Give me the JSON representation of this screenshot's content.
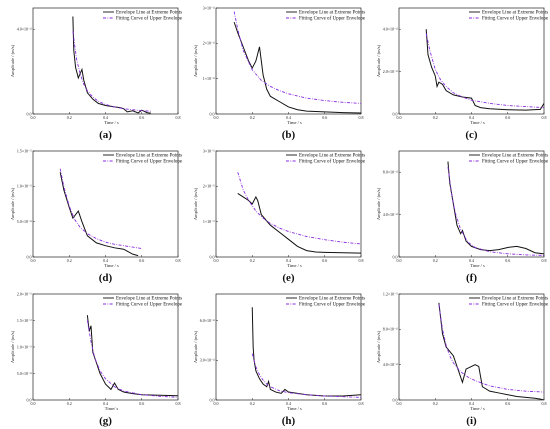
{
  "figure": {
    "legend_labels": [
      "Envelope Line at Extreme Points",
      "Fitting Curve of Upper Envelope"
    ],
    "colors": {
      "envelope": "#111111",
      "fit": "#8a2be2",
      "axis": "#222222"
    }
  },
  "chart_data": [
    {
      "type": "line",
      "caption": "(a)",
      "xlabel": "Time / s",
      "ylabel": "Amplitude / (m/s)",
      "xlim": [
        0,
        0.8
      ],
      "xticks": [
        "0.0",
        "0.2",
        "0.4",
        "0.6",
        "0.8"
      ],
      "ylim": [
        0,
        0.0005
      ],
      "yticks": [
        {
          "v": 0,
          "label": "0.0"
        },
        {
          "v": 0.0004,
          "label": "4.0×10⁻⁴"
        }
      ],
      "legend": "top-right",
      "series": [
        {
          "name": "Envelope Line at Extreme Points",
          "style": "solid",
          "x": [
            0.22,
            0.225,
            0.235,
            0.25,
            0.26,
            0.27,
            0.28,
            0.3,
            0.33,
            0.36,
            0.4,
            0.44,
            0.48,
            0.5,
            0.52,
            0.55,
            0.58,
            0.6,
            0.63,
            0.65
          ],
          "y": [
            0.00046,
            0.0003,
            0.00022,
            0.00017,
            0.00019,
            0.00021,
            0.00016,
            0.0001,
            7e-05,
            5e-05,
            4e-05,
            3.5e-05,
            3e-05,
            2.5e-05,
            1e-05,
            1.5e-05,
            5e-06,
            1.8e-05,
            6e-06,
            4e-06
          ]
        },
        {
          "name": "Fitting Curve of Upper Envelope",
          "style": "dashdot",
          "x": [
            0.22,
            0.24,
            0.26,
            0.28,
            0.3,
            0.33,
            0.36,
            0.4,
            0.45,
            0.5,
            0.55,
            0.6,
            0.65
          ],
          "y": [
            0.00039,
            0.00026,
            0.00019,
            0.00014,
            0.00011,
            8e-05,
            6e-05,
            4.5e-05,
            3.3e-05,
            2.5e-05,
            2e-05,
            1.6e-05,
            1.3e-05
          ]
        }
      ]
    },
    {
      "type": "line",
      "caption": "(b)",
      "xlabel": "Time / s",
      "ylabel": "Amplitude / (m/s)",
      "xlim": [
        0,
        0.8
      ],
      "xticks": [
        "0.0",
        "0.2",
        "0.4",
        "0.6",
        "0.8"
      ],
      "ylim": [
        0,
        0.0003
      ],
      "yticks": [
        {
          "v": 0,
          "label": "0.0"
        },
        {
          "v": 0.0001,
          "label": "1×10⁻⁴"
        },
        {
          "v": 0.0002,
          "label": "2×10⁻⁴"
        },
        {
          "v": 0.0003,
          "label": "3×10⁻⁴"
        }
      ],
      "legend": "top-right",
      "series": [
        {
          "name": "Envelope Line at Extreme Points",
          "style": "solid",
          "x": [
            0.1,
            0.12,
            0.15,
            0.18,
            0.2,
            0.22,
            0.24,
            0.26,
            0.28,
            0.3,
            0.35,
            0.4,
            0.45,
            0.5,
            0.6,
            0.7,
            0.8
          ],
          "y": [
            0.00026,
            0.00023,
            0.00019,
            0.00015,
            0.00013,
            0.00015,
            0.00019,
            0.00011,
            7e-05,
            5e-05,
            3.5e-05,
            2e-05,
            1.2e-05,
            8e-06,
            6e-06,
            4e-06,
            3e-06
          ]
        },
        {
          "name": "Fitting Curve of Upper Envelope",
          "style": "dashdot",
          "x": [
            0.1,
            0.12,
            0.15,
            0.2,
            0.25,
            0.3,
            0.35,
            0.4,
            0.5,
            0.6,
            0.7,
            0.8
          ],
          "y": [
            0.00029,
            0.00024,
            0.00018,
            0.000125,
            9.5e-05,
            7.8e-05,
            6.6e-05,
            5.7e-05,
            4.5e-05,
            3.8e-05,
            3.3e-05,
            3e-05
          ]
        }
      ]
    },
    {
      "type": "line",
      "caption": "(c)",
      "xlabel": "Time / s",
      "ylabel": "Amplitude / (m/s)",
      "xlim": [
        0,
        0.8
      ],
      "xticks": [
        "0.0",
        "0.2",
        "0.4",
        "0.6",
        "0.8"
      ],
      "ylim": [
        0,
        0.0005
      ],
      "yticks": [
        {
          "v": 0,
          "label": "0.0"
        },
        {
          "v": 0.0002,
          "label": "2.0×10⁻⁴"
        },
        {
          "v": 0.0004,
          "label": "4.0×10⁻⁴"
        }
      ],
      "legend": "top-right",
      "series": [
        {
          "name": "Envelope Line at Extreme Points",
          "style": "solid",
          "x": [
            0.15,
            0.16,
            0.18,
            0.2,
            0.21,
            0.22,
            0.24,
            0.26,
            0.3,
            0.35,
            0.4,
            0.42,
            0.45,
            0.5,
            0.6,
            0.7,
            0.78,
            0.8
          ],
          "y": [
            0.0004,
            0.00028,
            0.00022,
            0.00018,
            0.00013,
            0.00015,
            0.00014,
            0.00011,
            9e-05,
            8e-05,
            7.5e-05,
            4e-05,
            3e-05,
            2.5e-05,
            2e-05,
            1.8e-05,
            2.2e-05,
            5e-05
          ]
        },
        {
          "name": "Fitting Curve of Upper Envelope",
          "style": "dashdot",
          "x": [
            0.15,
            0.17,
            0.2,
            0.23,
            0.26,
            0.3,
            0.35,
            0.4,
            0.5,
            0.6,
            0.7,
            0.8
          ],
          "y": [
            0.00038,
            0.0003,
            0.00021,
            0.00016,
            0.00013,
            0.0001,
            8e-05,
            6.5e-05,
            5e-05,
            4e-05,
            3.5e-05,
            3e-05
          ]
        }
      ]
    },
    {
      "type": "line",
      "caption": "(d)",
      "xlabel": "Time / s",
      "ylabel": "Amplitude / (m/s)",
      "xlim": [
        0,
        0.8
      ],
      "xticks": [
        "0.0",
        "0.2",
        "0.4",
        "0.6",
        "0.8"
      ],
      "ylim": [
        0,
        0.0015
      ],
      "yticks": [
        {
          "v": 0,
          "label": "0.0"
        },
        {
          "v": 0.0005,
          "label": "5.0×10⁻⁴"
        },
        {
          "v": 0.001,
          "label": "1.0×10⁻³"
        },
        {
          "v": 0.0015,
          "label": "1.5×10⁻³"
        }
      ],
      "legend": "top-right",
      "series": [
        {
          "name": "Envelope Line at Extreme Points",
          "style": "solid",
          "x": [
            0.15,
            0.17,
            0.2,
            0.22,
            0.25,
            0.27,
            0.3,
            0.35,
            0.4,
            0.45,
            0.5,
            0.55,
            0.58
          ],
          "y": [
            0.0012,
            0.00095,
            0.0007,
            0.00055,
            0.00065,
            0.0005,
            0.0003,
            0.0002,
            0.00016,
            0.00013,
            0.00011,
            4e-05,
            2e-05
          ]
        },
        {
          "name": "Fitting Curve of Upper Envelope",
          "style": "dashdot",
          "x": [
            0.15,
            0.17,
            0.2,
            0.23,
            0.26,
            0.3,
            0.35,
            0.4,
            0.45,
            0.5,
            0.55,
            0.6
          ],
          "y": [
            0.00125,
            0.001,
            0.00072,
            0.00053,
            0.00042,
            0.00033,
            0.00026,
            0.00021,
            0.00018,
            0.00016,
            0.00014,
            0.00012
          ]
        }
      ]
    },
    {
      "type": "line",
      "caption": "(e)",
      "xlabel": "Time / s",
      "ylabel": "Amplitude / (m/s)",
      "xlim": [
        0,
        0.8
      ],
      "xticks": [
        "0.0",
        "0.2",
        "0.4",
        "0.6",
        "0.8"
      ],
      "ylim": [
        0,
        0.003
      ],
      "yticks": [
        {
          "v": 0,
          "label": "0.0"
        },
        {
          "v": 0.001,
          "label": "1×10⁻³"
        },
        {
          "v": 0.002,
          "label": "2×10⁻³"
        },
        {
          "v": 0.003,
          "label": "3×10⁻³"
        }
      ],
      "legend": "top-right",
      "series": [
        {
          "name": "Envelope Line at Extreme Points",
          "style": "solid",
          "x": [
            0.12,
            0.15,
            0.18,
            0.2,
            0.22,
            0.23,
            0.25,
            0.3,
            0.35,
            0.4,
            0.45,
            0.5,
            0.55,
            0.6,
            0.7,
            0.8
          ],
          "y": [
            0.0018,
            0.0017,
            0.0016,
            0.0015,
            0.0017,
            0.0016,
            0.0012,
            0.0009,
            0.0007,
            0.0005,
            0.0003,
            0.00018,
            0.00014,
            0.00013,
            0.00012,
            0.00011
          ]
        },
        {
          "name": "Fitting Curve of Upper Envelope",
          "style": "dashdot",
          "x": [
            0.12,
            0.15,
            0.18,
            0.22,
            0.26,
            0.3,
            0.35,
            0.4,
            0.5,
            0.6,
            0.7,
            0.8
          ],
          "y": [
            0.0024,
            0.0019,
            0.0016,
            0.0013,
            0.0011,
            0.00095,
            0.00082,
            0.00072,
            0.00058,
            0.00049,
            0.00042,
            0.00037
          ]
        }
      ]
    },
    {
      "type": "line",
      "caption": "(f)",
      "xlabel": "Time / s",
      "ylabel": "Amplitude / (m/s)",
      "xlim": [
        0,
        0.8
      ],
      "xticks": [
        "0.0",
        "0.2",
        "0.4",
        "0.6",
        "0.8"
      ],
      "ylim": [
        0,
        0.001
      ],
      "yticks": [
        {
          "v": 0,
          "label": "0.0"
        },
        {
          "v": 0.0004,
          "label": "4.0×10⁻⁴"
        },
        {
          "v": 0.0008,
          "label": "8.0×10⁻⁴"
        }
      ],
      "legend": "top-right",
      "series": [
        {
          "name": "Envelope Line at Extreme Points",
          "style": "solid",
          "x": [
            0.27,
            0.28,
            0.3,
            0.32,
            0.34,
            0.35,
            0.37,
            0.4,
            0.45,
            0.5,
            0.55,
            0.6,
            0.65,
            0.7,
            0.75,
            0.8
          ],
          "y": [
            0.0009,
            0.0007,
            0.0005,
            0.0003,
            0.00022,
            0.00025,
            0.00015,
            0.0001,
            7e-05,
            6e-05,
            7e-05,
            9e-05,
            0.0001,
            8e-05,
            4e-05,
            3e-05
          ]
        },
        {
          "name": "Fitting Curve of Upper Envelope",
          "style": "dashdot",
          "x": [
            0.27,
            0.29,
            0.31,
            0.34,
            0.38,
            0.42,
            0.5,
            0.6,
            0.7,
            0.8
          ],
          "y": [
            0.00085,
            0.0006,
            0.00042,
            0.00026,
            0.00014,
            9e-05,
            5e-05,
            3e-05,
            2e-05,
            1.5e-05
          ]
        }
      ]
    },
    {
      "type": "line",
      "caption": "(g)",
      "xlabel": "Time/ s",
      "ylabel": "Amplitude / (m/s)",
      "xlim": [
        0,
        0.8
      ],
      "xticks": [
        "0.0",
        "0.2",
        "0.4",
        "0.6",
        "0.8"
      ],
      "ylim": [
        0,
        0.002
      ],
      "yticks": [
        {
          "v": 0,
          "label": "0.0"
        },
        {
          "v": 0.0005,
          "label": "5.0×10⁻⁴"
        },
        {
          "v": 0.001,
          "label": "1.0×10⁻³"
        },
        {
          "v": 0.0015,
          "label": "1.5×10⁻³"
        },
        {
          "v": 0.002,
          "label": "2.0×10⁻³"
        }
      ],
      "legend": "top-right",
      "series": [
        {
          "name": "Envelope Line at Extreme Points",
          "style": "solid",
          "x": [
            0.3,
            0.31,
            0.32,
            0.33,
            0.35,
            0.37,
            0.4,
            0.43,
            0.45,
            0.47,
            0.5,
            0.55,
            0.6,
            0.7,
            0.8
          ],
          "y": [
            0.0016,
            0.0013,
            0.0014,
            0.0009,
            0.0007,
            0.0005,
            0.0003,
            0.0002,
            0.00032,
            0.0002,
            0.00015,
            0.00012,
            0.0001,
            9e-05,
            8e-05
          ]
        },
        {
          "name": "Fitting Curve of Upper Envelope",
          "style": "dashdot",
          "x": [
            0.3,
            0.32,
            0.34,
            0.37,
            0.4,
            0.45,
            0.5,
            0.6,
            0.7,
            0.8
          ],
          "y": [
            0.0015,
            0.0011,
            0.0008,
            0.00055,
            0.0004,
            0.00025,
            0.00017,
            0.0001,
            7e-05,
            5e-05
          ]
        }
      ]
    },
    {
      "type": "line",
      "caption": "(h)",
      "xlabel": "Time / s",
      "ylabel": "Amplitude / (m/s)",
      "xlim": [
        0,
        0.8
      ],
      "xticks": [
        "0.0",
        "0.2",
        "0.4",
        "0.6",
        "0.8"
      ],
      "ylim": [
        0,
        0.0008
      ],
      "yticks": [
        {
          "v": 0,
          "label": "0.0"
        },
        {
          "v": 0.0003,
          "label": "3.0×10⁻⁴"
        },
        {
          "v": 0.0006,
          "label": "6.0×10⁻⁴"
        }
      ],
      "legend": "top-right",
      "series": [
        {
          "name": "Envelope Line at Extreme Points",
          "style": "solid",
          "x": [
            0.2,
            0.205,
            0.21,
            0.22,
            0.24,
            0.26,
            0.28,
            0.29,
            0.3,
            0.33,
            0.36,
            0.38,
            0.4,
            0.45,
            0.5,
            0.6,
            0.7,
            0.8
          ],
          "y": [
            0.0007,
            0.0004,
            0.0003,
            0.00022,
            0.00016,
            0.00012,
            0.0001,
            0.00014,
            8e-05,
            6e-05,
            5e-05,
            8e-05,
            6e-05,
            5e-05,
            4e-05,
            3e-05,
            3e-05,
            4e-05
          ]
        },
        {
          "name": "Fitting Curve of Upper Envelope",
          "style": "dashdot",
          "x": [
            0.2,
            0.21,
            0.22,
            0.24,
            0.26,
            0.28,
            0.3,
            0.35,
            0.4,
            0.5,
            0.6,
            0.7,
            0.8
          ],
          "y": [
            0.00035,
            0.0003,
            0.00025,
            0.00019,
            0.00015,
            0.00012,
            0.0001,
            7e-05,
            5.5e-05,
            4e-05,
            3e-05,
            2.5e-05,
            2e-05
          ]
        }
      ]
    },
    {
      "type": "line",
      "caption": "(i)",
      "xlabel": "Time / s",
      "ylabel": "Amplitude / (m/s)",
      "xlim": [
        0,
        0.8
      ],
      "xticks": [
        "0.0",
        "0.2",
        "0.4",
        "0.6",
        "0.8"
      ],
      "ylim": [
        0,
        0.0012
      ],
      "yticks": [
        {
          "v": 0,
          "label": "0.0"
        },
        {
          "v": 0.0004,
          "label": "4.0×10⁻⁴"
        },
        {
          "v": 0.0008,
          "label": "8.0×10⁻⁴"
        },
        {
          "v": 0.0012,
          "label": "1.2×10⁻³"
        }
      ],
      "legend": "top-right",
      "series": [
        {
          "name": "Envelope Line at Extreme Points",
          "style": "solid",
          "x": [
            0.22,
            0.24,
            0.26,
            0.3,
            0.35,
            0.37,
            0.4,
            0.42,
            0.44,
            0.46,
            0.5,
            0.55,
            0.6,
            0.65,
            0.7,
            0.75,
            0.78,
            0.8
          ],
          "y": [
            0.0011,
            0.00075,
            0.0006,
            0.0005,
            0.0002,
            0.00035,
            0.00038,
            0.0004,
            0.00038,
            0.00015,
            0.0001,
            8e-05,
            6e-05,
            4e-05,
            3e-05,
            2e-05,
            1e-05,
            0.0
          ]
        },
        {
          "name": "Fitting Curve of Upper Envelope",
          "style": "dashdot",
          "x": [
            0.22,
            0.24,
            0.26,
            0.28,
            0.3,
            0.34,
            0.38,
            0.42,
            0.5,
            0.6,
            0.7,
            0.8
          ],
          "y": [
            0.00108,
            0.0008,
            0.00062,
            0.0005,
            0.00042,
            0.00032,
            0.00026,
            0.00022,
            0.00016,
            0.00012,
            0.0001,
            9e-05
          ]
        }
      ]
    }
  ]
}
